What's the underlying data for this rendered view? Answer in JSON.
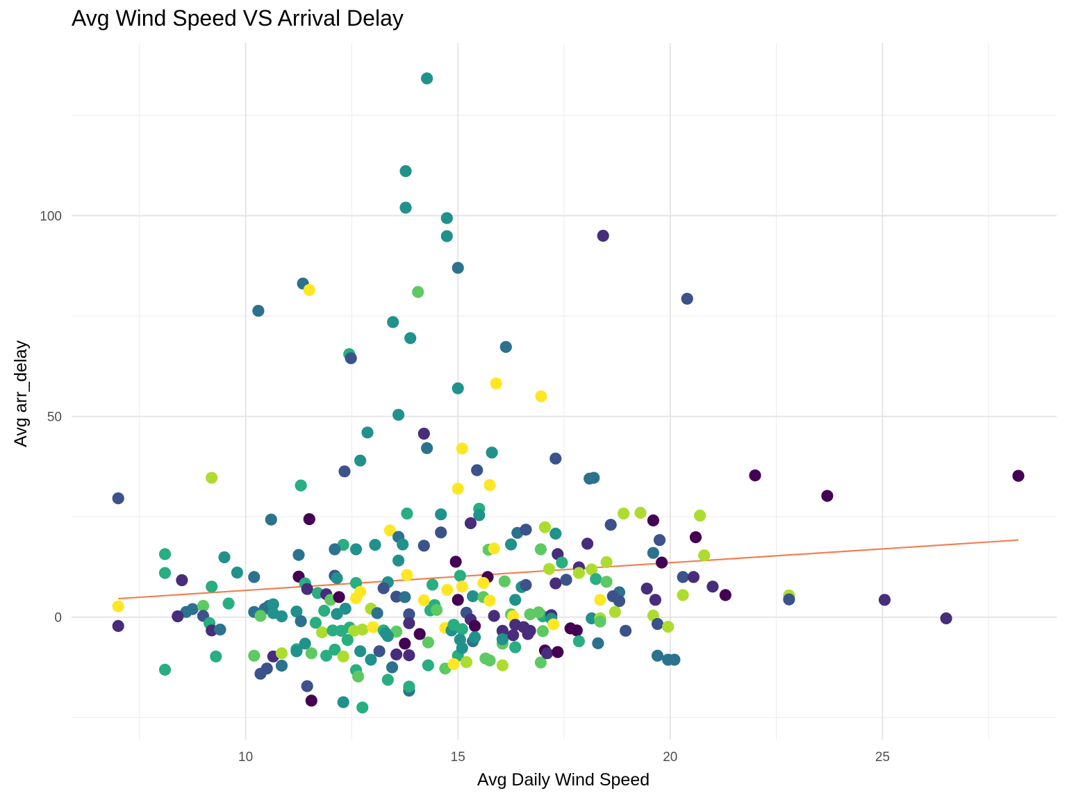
{
  "chart_data": {
    "type": "scatter",
    "title": "Avg Wind Speed VS Arrival Delay",
    "xlabel": "Avg Daily Wind Speed",
    "ylabel": "Avg arr_delay",
    "xlim": [
      5.9,
      29.1
    ],
    "ylim": [
      -30.5,
      143
    ],
    "x_ticks": [
      10,
      15,
      20,
      25
    ],
    "y_ticks": [
      0,
      50,
      100
    ],
    "grid": true,
    "legend": "none",
    "point_color_scale": "viridis",
    "palette": [
      "#440154",
      "#472d7b",
      "#3b528b",
      "#2c728e",
      "#21918c",
      "#28ae80",
      "#5ec962",
      "#addc30",
      "#fde725"
    ],
    "trend_line": {
      "color": "#f08050",
      "points": [
        [
          7.0,
          4.6
        ],
        [
          28.2,
          19.2
        ]
      ]
    },
    "points": [
      [
        14.27,
        134.2,
        4
      ],
      [
        13.77,
        111.1,
        4
      ],
      [
        13.77,
        102.0,
        4
      ],
      [
        14.74,
        99.4,
        4
      ],
      [
        14.74,
        94.9,
        4
      ],
      [
        18.42,
        95.0,
        1
      ],
      [
        15.0,
        87.0,
        3
      ],
      [
        11.35,
        83.1,
        3
      ],
      [
        11.5,
        81.5,
        8
      ],
      [
        14.06,
        81.0,
        6
      ],
      [
        20.4,
        79.3,
        2
      ],
      [
        10.3,
        76.3,
        3
      ],
      [
        13.47,
        73.5,
        4
      ],
      [
        13.88,
        69.5,
        4
      ],
      [
        16.13,
        67.3,
        3
      ],
      [
        12.44,
        65.5,
        5
      ],
      [
        12.48,
        64.5,
        2
      ],
      [
        15.0,
        57.0,
        4
      ],
      [
        15.9,
        58.2,
        8
      ],
      [
        16.96,
        55.0,
        8
      ],
      [
        13.6,
        50.4,
        4
      ],
      [
        12.87,
        46.0,
        4
      ],
      [
        14.2,
        45.7,
        1
      ],
      [
        14.27,
        42.1,
        3
      ],
      [
        15.1,
        42.0,
        8
      ],
      [
        15.8,
        41.0,
        4
      ],
      [
        12.7,
        39.0,
        4
      ],
      [
        17.3,
        39.5,
        2
      ],
      [
        12.33,
        36.3,
        2
      ],
      [
        15.45,
        36.6,
        2
      ],
      [
        18.1,
        34.5,
        3
      ],
      [
        18.2,
        34.7,
        3
      ],
      [
        22.0,
        35.3,
        0
      ],
      [
        28.2,
        35.2,
        0
      ],
      [
        9.2,
        34.7,
        7
      ],
      [
        11.3,
        32.8,
        5
      ],
      [
        15.0,
        32.0,
        8
      ],
      [
        15.75,
        32.9,
        8
      ],
      [
        23.7,
        30.2,
        0
      ],
      [
        7.0,
        29.6,
        2
      ],
      [
        15.5,
        27.0,
        5
      ],
      [
        13.8,
        25.8,
        5
      ],
      [
        14.6,
        25.6,
        4
      ],
      [
        15.5,
        25.4,
        4
      ],
      [
        18.9,
        25.8,
        7
      ],
      [
        19.3,
        26.0,
        7
      ],
      [
        20.7,
        25.3,
        7
      ],
      [
        10.6,
        24.3,
        3
      ],
      [
        11.5,
        24.4,
        0
      ],
      [
        15.3,
        23.4,
        1
      ],
      [
        18.6,
        23.0,
        2
      ],
      [
        19.6,
        24.1,
        0
      ],
      [
        13.4,
        21.6,
        8
      ],
      [
        14.6,
        21.1,
        2
      ],
      [
        16.4,
        21.0,
        3
      ],
      [
        16.6,
        21.8,
        2
      ],
      [
        17.05,
        22.4,
        7
      ],
      [
        17.3,
        20.8,
        4
      ],
      [
        13.6,
        20.0,
        3
      ],
      [
        12.3,
        18.0,
        5
      ],
      [
        12.1,
        16.9,
        3
      ],
      [
        13.05,
        18.0,
        4
      ],
      [
        13.7,
        18.1,
        4
      ],
      [
        14.2,
        17.8,
        2
      ],
      [
        16.25,
        18.1,
        4
      ],
      [
        15.72,
        16.8,
        6
      ],
      [
        15.85,
        17.1,
        8
      ],
      [
        16.95,
        16.9,
        6
      ],
      [
        18.05,
        18.3,
        1
      ],
      [
        19.75,
        19.2,
        2
      ],
      [
        20.6,
        19.9,
        0
      ],
      [
        8.1,
        15.7,
        5
      ],
      [
        9.5,
        14.9,
        4
      ],
      [
        11.25,
        15.5,
        3
      ],
      [
        12.6,
        16.9,
        4
      ],
      [
        13.6,
        14.1,
        4
      ],
      [
        17.35,
        15.7,
        1
      ],
      [
        17.45,
        13.6,
        5
      ],
      [
        18.5,
        13.7,
        7
      ],
      [
        19.6,
        16.0,
        3
      ],
      [
        19.8,
        13.6,
        0
      ],
      [
        20.8,
        15.4,
        7
      ],
      [
        8.1,
        11.0,
        5
      ],
      [
        9.8,
        11.1,
        4
      ],
      [
        10.2,
        10.0,
        3
      ],
      [
        11.25,
        10.1,
        0
      ],
      [
        12.1,
        10.3,
        2
      ],
      [
        13.8,
        10.5,
        8
      ],
      [
        14.95,
        13.8,
        0
      ],
      [
        15.05,
        10.3,
        5
      ],
      [
        15.7,
        10.0,
        0
      ],
      [
        17.15,
        12.0,
        7
      ],
      [
        17.85,
        12.4,
        1
      ],
      [
        17.85,
        11.0,
        7
      ],
      [
        18.15,
        11.9,
        7
      ],
      [
        19.45,
        7.1,
        1
      ],
      [
        20.3,
        10.0,
        2
      ],
      [
        20.55,
        10.0,
        1
      ],
      [
        8.5,
        9.2,
        1
      ],
      [
        9.2,
        7.6,
        5
      ],
      [
        11.4,
        8.4,
        5
      ],
      [
        12.15,
        9.7,
        4
      ],
      [
        12.6,
        8.5,
        5
      ],
      [
        13.35,
        8.7,
        4
      ],
      [
        14.4,
        8.1,
        5
      ],
      [
        15.1,
        7.6,
        8
      ],
      [
        15.6,
        8.5,
        8
      ],
      [
        16.1,
        8.9,
        6
      ],
      [
        16.5,
        7.5,
        4
      ],
      [
        16.6,
        8.0,
        2
      ],
      [
        17.3,
        8.4,
        1
      ],
      [
        17.55,
        9.3,
        2
      ],
      [
        18.25,
        9.5,
        5
      ],
      [
        18.5,
        8.8,
        6
      ],
      [
        18.8,
        6.2,
        3
      ],
      [
        21.0,
        7.6,
        1
      ],
      [
        9.6,
        3.4,
        5
      ],
      [
        11.45,
        7.0,
        1
      ],
      [
        11.7,
        6.0,
        5
      ],
      [
        11.9,
        5.7,
        1
      ],
      [
        12.0,
        4.3,
        6
      ],
      [
        12.2,
        5.0,
        0
      ],
      [
        12.6,
        4.7,
        8
      ],
      [
        12.7,
        6.3,
        8
      ],
      [
        13.25,
        7.2,
        2
      ],
      [
        13.55,
        5.1,
        2
      ],
      [
        13.75,
        5.0,
        3
      ],
      [
        14.2,
        4.2,
        8
      ],
      [
        14.45,
        3.0,
        5
      ],
      [
        14.75,
        6.8,
        8
      ],
      [
        15.0,
        4.3,
        0
      ],
      [
        15.35,
        5.2,
        4
      ],
      [
        15.6,
        5.0,
        6
      ],
      [
        15.75,
        4.1,
        8
      ],
      [
        16.35,
        4.3,
        4
      ],
      [
        17.0,
        0.2,
        5
      ],
      [
        18.35,
        4.3,
        8
      ],
      [
        18.65,
        5.2,
        2
      ],
      [
        18.8,
        4.0,
        2
      ],
      [
        19.65,
        4.3,
        1
      ],
      [
        20.3,
        5.5,
        7
      ],
      [
        21.3,
        5.5,
        0
      ],
      [
        22.8,
        5.4,
        7
      ],
      [
        22.8,
        4.4,
        2
      ],
      [
        25.05,
        4.3,
        1
      ],
      [
        7.0,
        2.7,
        8
      ],
      [
        8.6,
        1.3,
        3
      ],
      [
        8.75,
        2.0,
        3
      ],
      [
        9.0,
        2.8,
        6
      ],
      [
        10.2,
        1.3,
        3
      ],
      [
        10.45,
        2.1,
        3
      ],
      [
        10.55,
        2.8,
        3
      ],
      [
        10.65,
        1.0,
        4
      ],
      [
        10.65,
        3.2,
        4
      ],
      [
        11.2,
        1.4,
        4
      ],
      [
        11.85,
        1.6,
        5
      ],
      [
        12.15,
        0.8,
        4
      ],
      [
        12.35,
        2.1,
        4
      ],
      [
        12.95,
        2.1,
        7
      ],
      [
        13.1,
        1.0,
        3
      ],
      [
        13.85,
        0.7,
        2
      ],
      [
        14.35,
        1.7,
        5
      ],
      [
        14.5,
        1.8,
        6
      ],
      [
        15.2,
        1.1,
        2
      ],
      [
        15.85,
        0.3,
        1
      ],
      [
        16.25,
        0.7,
        6
      ],
      [
        16.3,
        0.2,
        8
      ],
      [
        16.7,
        0.7,
        6
      ],
      [
        16.9,
        1.2,
        6
      ],
      [
        17.2,
        0.5,
        1
      ],
      [
        17.2,
        -0.4,
        4
      ],
      [
        18.15,
        -0.3,
        4
      ],
      [
        18.35,
        -0.3,
        7
      ],
      [
        18.7,
        1.3,
        7
      ],
      [
        19.6,
        0.4,
        7
      ],
      [
        7.0,
        -2.2,
        1
      ],
      [
        8.4,
        0.2,
        1
      ],
      [
        9.0,
        0.3,
        2
      ],
      [
        9.15,
        -1.5,
        5
      ],
      [
        9.2,
        -3.3,
        1
      ],
      [
        9.4,
        -3.1,
        3
      ],
      [
        10.35,
        0.3,
        6
      ],
      [
        10.85,
        0.2,
        4
      ],
      [
        11.3,
        -1.0,
        3
      ],
      [
        11.65,
        -1.4,
        5
      ],
      [
        11.8,
        -3.8,
        7
      ],
      [
        12.05,
        -3.3,
        5
      ],
      [
        12.25,
        -3.4,
        5
      ],
      [
        12.45,
        -2.6,
        5
      ],
      [
        12.55,
        -3.4,
        7
      ],
      [
        12.75,
        -3.1,
        7
      ],
      [
        13.0,
        -2.5,
        8
      ],
      [
        13.25,
        -3.3,
        5
      ],
      [
        13.3,
        -4.0,
        4
      ],
      [
        13.55,
        -3.6,
        6
      ],
      [
        13.85,
        -1.5,
        1
      ],
      [
        14.1,
        -4.2,
        0
      ],
      [
        14.7,
        -2.7,
        8
      ],
      [
        14.85,
        -3.3,
        4
      ],
      [
        14.9,
        -1.9,
        5
      ],
      [
        15.1,
        -3.0,
        5
      ],
      [
        15.3,
        -0.6,
        1
      ],
      [
        15.4,
        -2.2,
        0
      ],
      [
        16.05,
        -3.4,
        1
      ],
      [
        16.35,
        -1.9,
        1
      ],
      [
        16.55,
        -2.5,
        1
      ],
      [
        16.7,
        -3.4,
        1
      ],
      [
        17.0,
        -3.5,
        6
      ],
      [
        17.25,
        -1.8,
        8
      ],
      [
        17.65,
        -2.8,
        0
      ],
      [
        17.8,
        -3.3,
        0
      ],
      [
        18.35,
        -1.1,
        6
      ],
      [
        18.95,
        -3.4,
        2
      ],
      [
        19.7,
        -1.7,
        2
      ],
      [
        19.95,
        -2.4,
        7
      ],
      [
        26.5,
        -0.3,
        1
      ],
      [
        10.2,
        -9.6,
        6
      ],
      [
        10.35,
        -14.1,
        2
      ],
      [
        10.5,
        -12.8,
        2
      ],
      [
        10.65,
        -9.8,
        1
      ],
      [
        10.85,
        -9.0,
        7
      ],
      [
        10.85,
        -12.1,
        3
      ],
      [
        11.2,
        -8.0,
        5
      ],
      [
        11.2,
        -8.5,
        4
      ],
      [
        11.4,
        -6.6,
        4
      ],
      [
        11.55,
        -9.0,
        6
      ],
      [
        11.9,
        -9.6,
        5
      ],
      [
        12.1,
        -8.1,
        5
      ],
      [
        12.3,
        -9.8,
        7
      ],
      [
        12.4,
        -5.7,
        5
      ],
      [
        12.6,
        -13.2,
        5
      ],
      [
        12.65,
        -14.8,
        6
      ],
      [
        12.7,
        -8.5,
        4
      ],
      [
        12.95,
        -10.6,
        4
      ],
      [
        13.15,
        -8.5,
        2
      ],
      [
        13.35,
        -4.7,
        4
      ],
      [
        13.45,
        -12.5,
        3
      ],
      [
        13.55,
        -9.3,
        1
      ],
      [
        13.75,
        -6.6,
        0
      ],
      [
        13.85,
        -9.5,
        1
      ],
      [
        14.3,
        -12.0,
        5
      ],
      [
        14.3,
        -6.3,
        6
      ],
      [
        14.7,
        -12.8,
        6
      ],
      [
        15.0,
        -9.6,
        5
      ],
      [
        15.05,
        -5.6,
        4
      ],
      [
        15.1,
        -7.7,
        4
      ],
      [
        15.35,
        -6.0,
        3
      ],
      [
        15.4,
        -5.0,
        4
      ],
      [
        15.65,
        -10.3,
        6
      ],
      [
        15.75,
        -10.8,
        6
      ],
      [
        16.05,
        -6.6,
        6
      ],
      [
        16.05,
        -5.5,
        4
      ],
      [
        16.3,
        -4.5,
        1
      ],
      [
        16.35,
        -7.5,
        5
      ],
      [
        16.65,
        -4.2,
        1
      ],
      [
        16.95,
        -11.3,
        6
      ],
      [
        17.05,
        -8.3,
        0
      ],
      [
        17.1,
        -9.0,
        1
      ],
      [
        17.35,
        -8.7,
        0
      ],
      [
        17.85,
        -6.0,
        5
      ],
      [
        18.3,
        -6.5,
        3
      ],
      [
        19.7,
        -9.6,
        3
      ],
      [
        19.95,
        -10.6,
        3
      ],
      [
        20.1,
        -10.6,
        3
      ],
      [
        8.1,
        -13.1,
        5
      ],
      [
        9.3,
        -9.8,
        5
      ],
      [
        11.45,
        -17.2,
        2
      ],
      [
        11.55,
        -20.8,
        0
      ],
      [
        12.3,
        -21.2,
        4
      ],
      [
        12.75,
        -22.5,
        5
      ],
      [
        13.35,
        -15.6,
        5
      ],
      [
        13.85,
        -18.3,
        3
      ],
      [
        13.85,
        -17.3,
        5
      ],
      [
        14.9,
        -11.7,
        8
      ],
      [
        16.05,
        -12.0,
        7
      ],
      [
        15.2,
        -11.2,
        7
      ]
    ]
  }
}
